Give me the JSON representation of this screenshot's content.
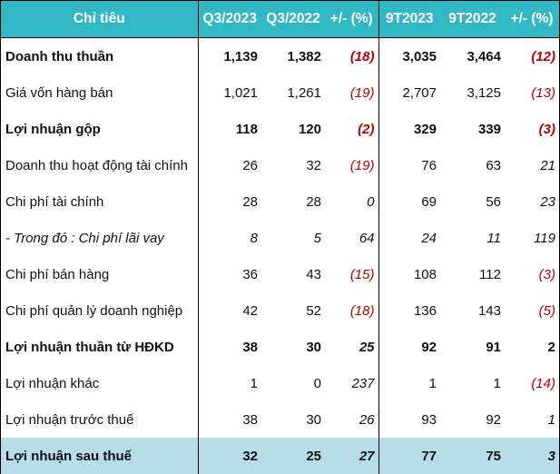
{
  "colors": {
    "header_bg": "#31B8C4",
    "header_text": "#FFFFFF",
    "negative": "#C00000",
    "highlight_row_bg": "#B7DDE8"
  },
  "header": {
    "label": "Chỉ tiêu",
    "q3_2023": "Q3/2023",
    "q3_2022": "Q3/2022",
    "q3_change": "+/- (%)",
    "ytd_2023": "9T2023",
    "ytd_2022": "9T2022",
    "ytd_change": "+/- (%)"
  },
  "rows": [
    {
      "label": "Doanh thu thuần",
      "q3_2023": "1,139",
      "q3_2022": "1,382",
      "q3_change": "(18)",
      "ytd_2023": "3,035",
      "ytd_2022": "3,464",
      "ytd_change": "(12)",
      "bold": true
    },
    {
      "label": "Giá vốn hàng bán",
      "q3_2023": "1,021",
      "q3_2022": "1,261",
      "q3_change": "(19)",
      "ytd_2023": "2,707",
      "ytd_2022": "3,125",
      "ytd_change": "(13)"
    },
    {
      "label": "Lợi nhuận gộp",
      "q3_2023": "118",
      "q3_2022": "120",
      "q3_change": "(2)",
      "ytd_2023": "329",
      "ytd_2022": "339",
      "ytd_change": "(3)",
      "bold": true
    },
    {
      "label": "Doanh thu hoạt động tài chính",
      "q3_2023": "26",
      "q3_2022": "32",
      "q3_change": "(19)",
      "ytd_2023": "76",
      "ytd_2022": "63",
      "ytd_change": "21"
    },
    {
      "label": "Chi phí tài chính",
      "q3_2023": "28",
      "q3_2022": "28",
      "q3_change": "0",
      "ytd_2023": "69",
      "ytd_2022": "56",
      "ytd_change": "23"
    },
    {
      "label": "- Trong đó : Chi phí lãi vay",
      "q3_2023": "8",
      "q3_2022": "5",
      "q3_change": "64",
      "ytd_2023": "24",
      "ytd_2022": "11",
      "ytd_change": "119",
      "italic": true
    },
    {
      "label": "Chi phí bán hàng",
      "q3_2023": "36",
      "q3_2022": "43",
      "q3_change": "(15)",
      "ytd_2023": "108",
      "ytd_2022": "112",
      "ytd_change": "(3)"
    },
    {
      "label": "Chi phí quản lý doanh nghiệp",
      "q3_2023": "42",
      "q3_2022": "52",
      "q3_change": "(18)",
      "ytd_2023": "136",
      "ytd_2022": "143",
      "ytd_change": "(5)"
    },
    {
      "label": "Lợi nhuận thuần từ HĐKD",
      "q3_2023": "38",
      "q3_2022": "30",
      "q3_change": "25",
      "ytd_2023": "92",
      "ytd_2022": "91",
      "ytd_change": "2",
      "bold": true
    },
    {
      "label": "Lợi nhuận khác",
      "q3_2023": "1",
      "q3_2022": "0",
      "q3_change": "237",
      "ytd_2023": "1",
      "ytd_2022": "1",
      "ytd_change": "(14)"
    },
    {
      "label": "Lợi nhuận trước thuế",
      "q3_2023": "38",
      "q3_2022": "30",
      "q3_change": "26",
      "ytd_2023": "93",
      "ytd_2022": "92",
      "ytd_change": "1"
    },
    {
      "label": "Lợi nhuận sau thuế",
      "q3_2023": "32",
      "q3_2022": "25",
      "q3_change": "27",
      "ytd_2023": "77",
      "ytd_2022": "75",
      "ytd_change": "3",
      "bold": true,
      "highlight": true
    }
  ]
}
